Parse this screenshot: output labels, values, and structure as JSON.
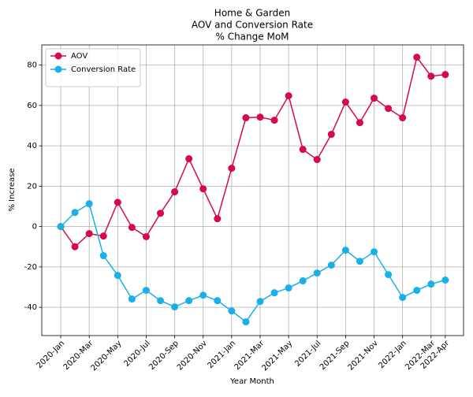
{
  "chart_data": {
    "type": "line",
    "title": [
      "Home & Garden",
      "AOV and Conversion Rate",
      "% Change MoM"
    ],
    "x_label": "Year Month",
    "y_label": "% Increase",
    "categories": [
      "2020-Jan",
      null,
      "2020-Mar",
      null,
      "2020-May",
      null,
      "2020-Jul",
      null,
      "2020-Sep",
      null,
      "2020-Nov",
      null,
      "2021-Jan",
      null,
      "2021-Mar",
      null,
      "2021-May",
      null,
      "2021-Jul",
      null,
      "2021-Sep",
      null,
      "2021-Nov",
      null,
      "2022-Jan",
      null,
      "2022-Mar",
      "2022-Apr"
    ],
    "series": [
      {
        "name": "AOV",
        "color": "#d5094c",
        "values": [
          0,
          -10,
          -3.5,
          -4.7,
          12,
          -0.4,
          -5,
          6.6,
          17.2,
          33.6,
          18.7,
          3.9,
          28.9,
          53.9,
          54.2,
          52.7,
          64.8,
          38.2,
          33.2,
          45.7,
          61.7,
          51.5,
          63.6,
          58.5,
          53.9,
          83.9,
          74.5,
          75.3
        ]
      },
      {
        "name": "Conversion Rate",
        "color": "#19b0ea",
        "values": [
          0,
          7,
          11.3,
          -14.4,
          -24.2,
          -35.9,
          -31.6,
          -36.7,
          -39.8,
          -36.7,
          -34,
          -36.7,
          -41.8,
          -47.2,
          -37.1,
          -32.8,
          -30.4,
          -26.9,
          -23,
          -19.1,
          -11.7,
          -17.2,
          -12.5,
          -23.8,
          -35.1,
          -31.6,
          -28.5,
          -26.5
        ]
      }
    ],
    "ylim": [
      -54,
      90
    ],
    "yticks": [
      -40,
      -20,
      0,
      20,
      40,
      60,
      80
    ],
    "grid": true,
    "legend": "upper left"
  }
}
